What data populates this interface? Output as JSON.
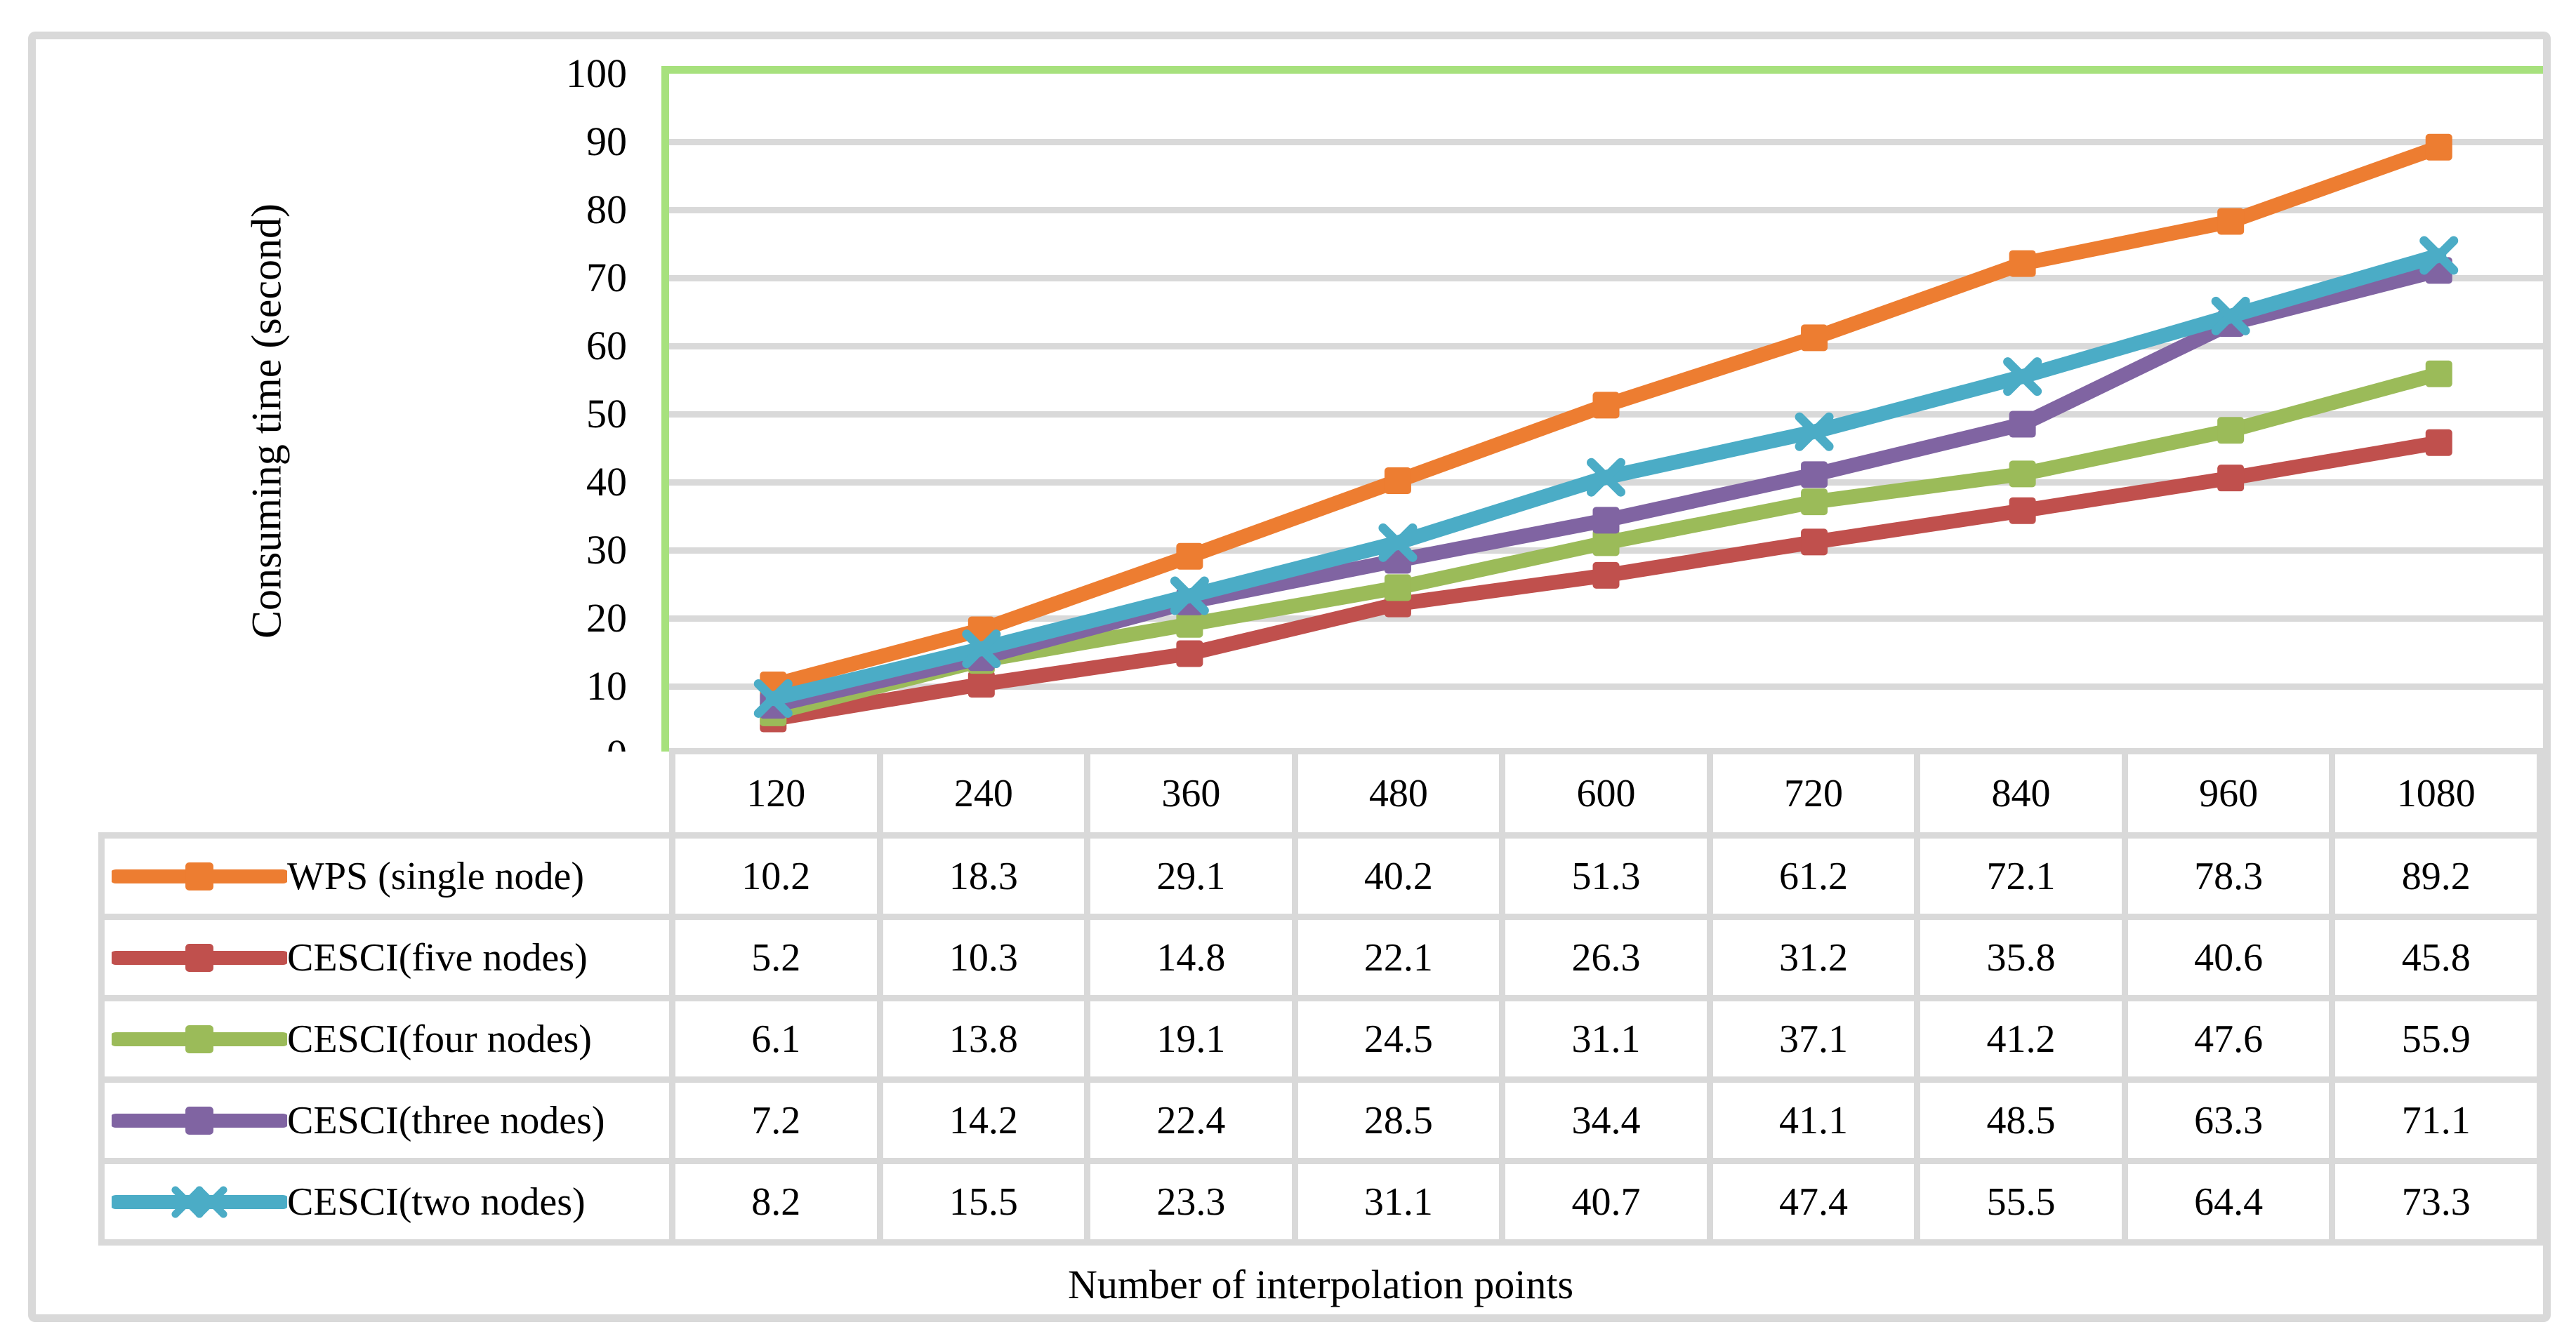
{
  "chart_data": {
    "type": "line",
    "xlabel": "Number of interpolation points",
    "ylabel": "Consuming time (second)",
    "categories": [
      120,
      240,
      360,
      480,
      600,
      720,
      840,
      960,
      1080
    ],
    "ylim": [
      0,
      100
    ],
    "yticks": [
      0,
      10,
      20,
      30,
      40,
      50,
      60,
      70,
      80,
      90,
      100
    ],
    "grid": true,
    "legend_position": "table-left",
    "series": [
      {
        "name": "WPS (single node)",
        "color": "#ed7d31",
        "marker": "square",
        "values": [
          10.2,
          18.3,
          29.1,
          40.2,
          51.3,
          61.2,
          72.1,
          78.3,
          89.2
        ]
      },
      {
        "name": "CESCI(five nodes)",
        "color": "#c0504d",
        "marker": "square",
        "values": [
          5.2,
          10.3,
          14.8,
          22.1,
          26.3,
          31.2,
          35.8,
          40.6,
          45.8
        ]
      },
      {
        "name": "CESCI(four nodes)",
        "color": "#9bbb59",
        "marker": "square",
        "values": [
          6.1,
          13.8,
          19.1,
          24.5,
          31.1,
          37.1,
          41.2,
          47.6,
          55.9
        ]
      },
      {
        "name": "CESCI(three nodes)",
        "color": "#8064a2",
        "marker": "square",
        "values": [
          7.2,
          14.2,
          22.4,
          28.5,
          34.4,
          41.1,
          48.5,
          63.3,
          71.1
        ]
      },
      {
        "name": "CESCI(two nodes)",
        "color": "#4bacc6",
        "marker": "x",
        "values": [
          8.2,
          15.5,
          23.3,
          31.1,
          40.7,
          47.4,
          55.5,
          64.4,
          73.3
        ]
      }
    ]
  },
  "colors": {
    "axis_green": "#a7e17d",
    "grid_gray": "#d9d9d9",
    "frame_gray": "#d9d9d9",
    "text": "#000000"
  }
}
